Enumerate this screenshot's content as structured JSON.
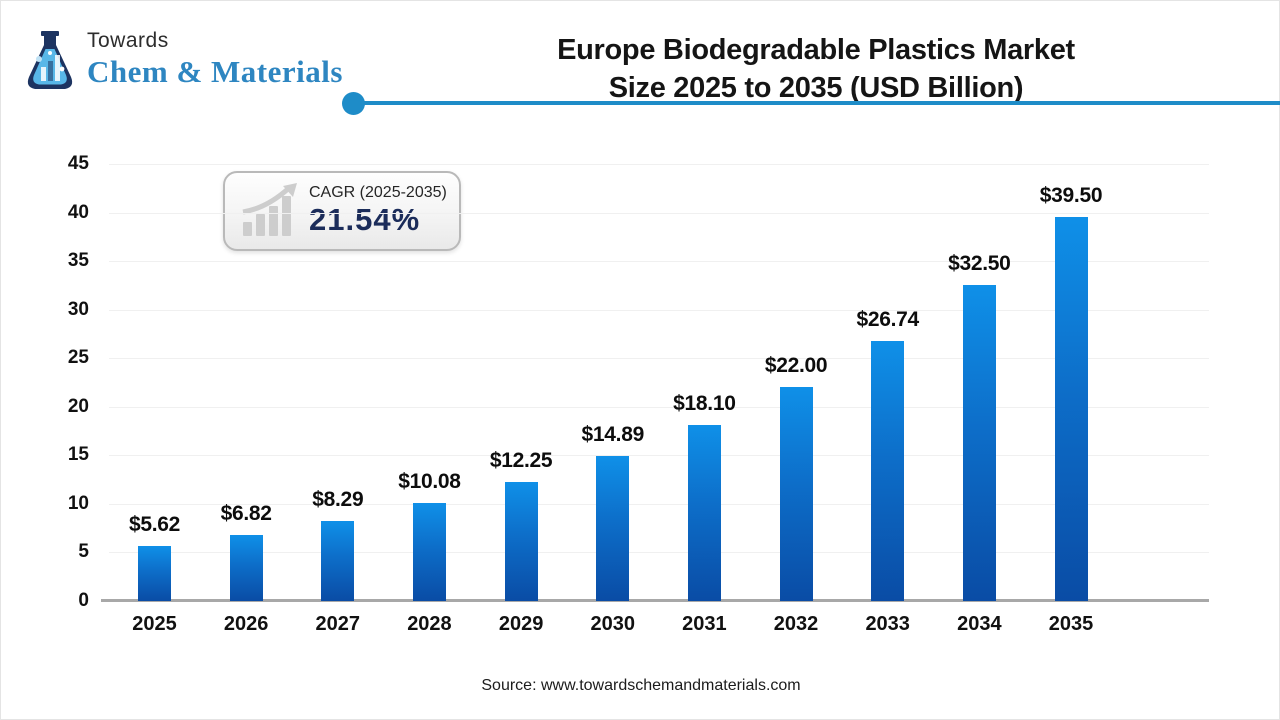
{
  "logo": {
    "towards": "Towards",
    "brand": "Chem & Materials"
  },
  "header": {
    "title_line1": "Europe Biodegradable Plastics Market",
    "title_line2": "Size 2025 to 2035 (USD Billion)"
  },
  "cagr_badge": {
    "label": "CAGR (2025-2035)",
    "value": "21.54%"
  },
  "footer": {
    "source": "Source: www.towardschemandmaterials.com"
  },
  "colors": {
    "divider": "#1e8cc8",
    "brand_text": "#2e86c1",
    "bar_top": "#0f90e8",
    "bar_mid": "#0d6ec9",
    "bar_bottom": "#0a4ca5",
    "axis_line": "#a8a8a8",
    "gridline": "#f0f0f0",
    "cagr_value_color": "#1b2c5a"
  },
  "chart_data": {
    "type": "bar",
    "title": "Europe Biodegradable Plastics Market Size 2025 to 2035 (USD Billion)",
    "categories": [
      "2025",
      "2026",
      "2027",
      "2028",
      "2029",
      "2030",
      "2031",
      "2032",
      "2033",
      "2034",
      "2035"
    ],
    "values": [
      5.62,
      6.82,
      8.29,
      10.08,
      12.25,
      14.89,
      18.1,
      22.0,
      26.74,
      32.5,
      39.5
    ],
    "value_labels": [
      "$5.62",
      "$6.82",
      "$8.29",
      "$10.08",
      "$12.25",
      "$14.89",
      "$18.10",
      "$22.00",
      "$26.74",
      "$32.50",
      "$39.50"
    ],
    "xlabel": "",
    "ylabel": "",
    "ylim": [
      0,
      45
    ],
    "ytick_step": 5,
    "yticks": [
      0,
      5,
      10,
      15,
      20,
      25,
      30,
      35,
      40,
      45
    ],
    "grid": true,
    "legend": "none",
    "unit": "USD Billion"
  }
}
